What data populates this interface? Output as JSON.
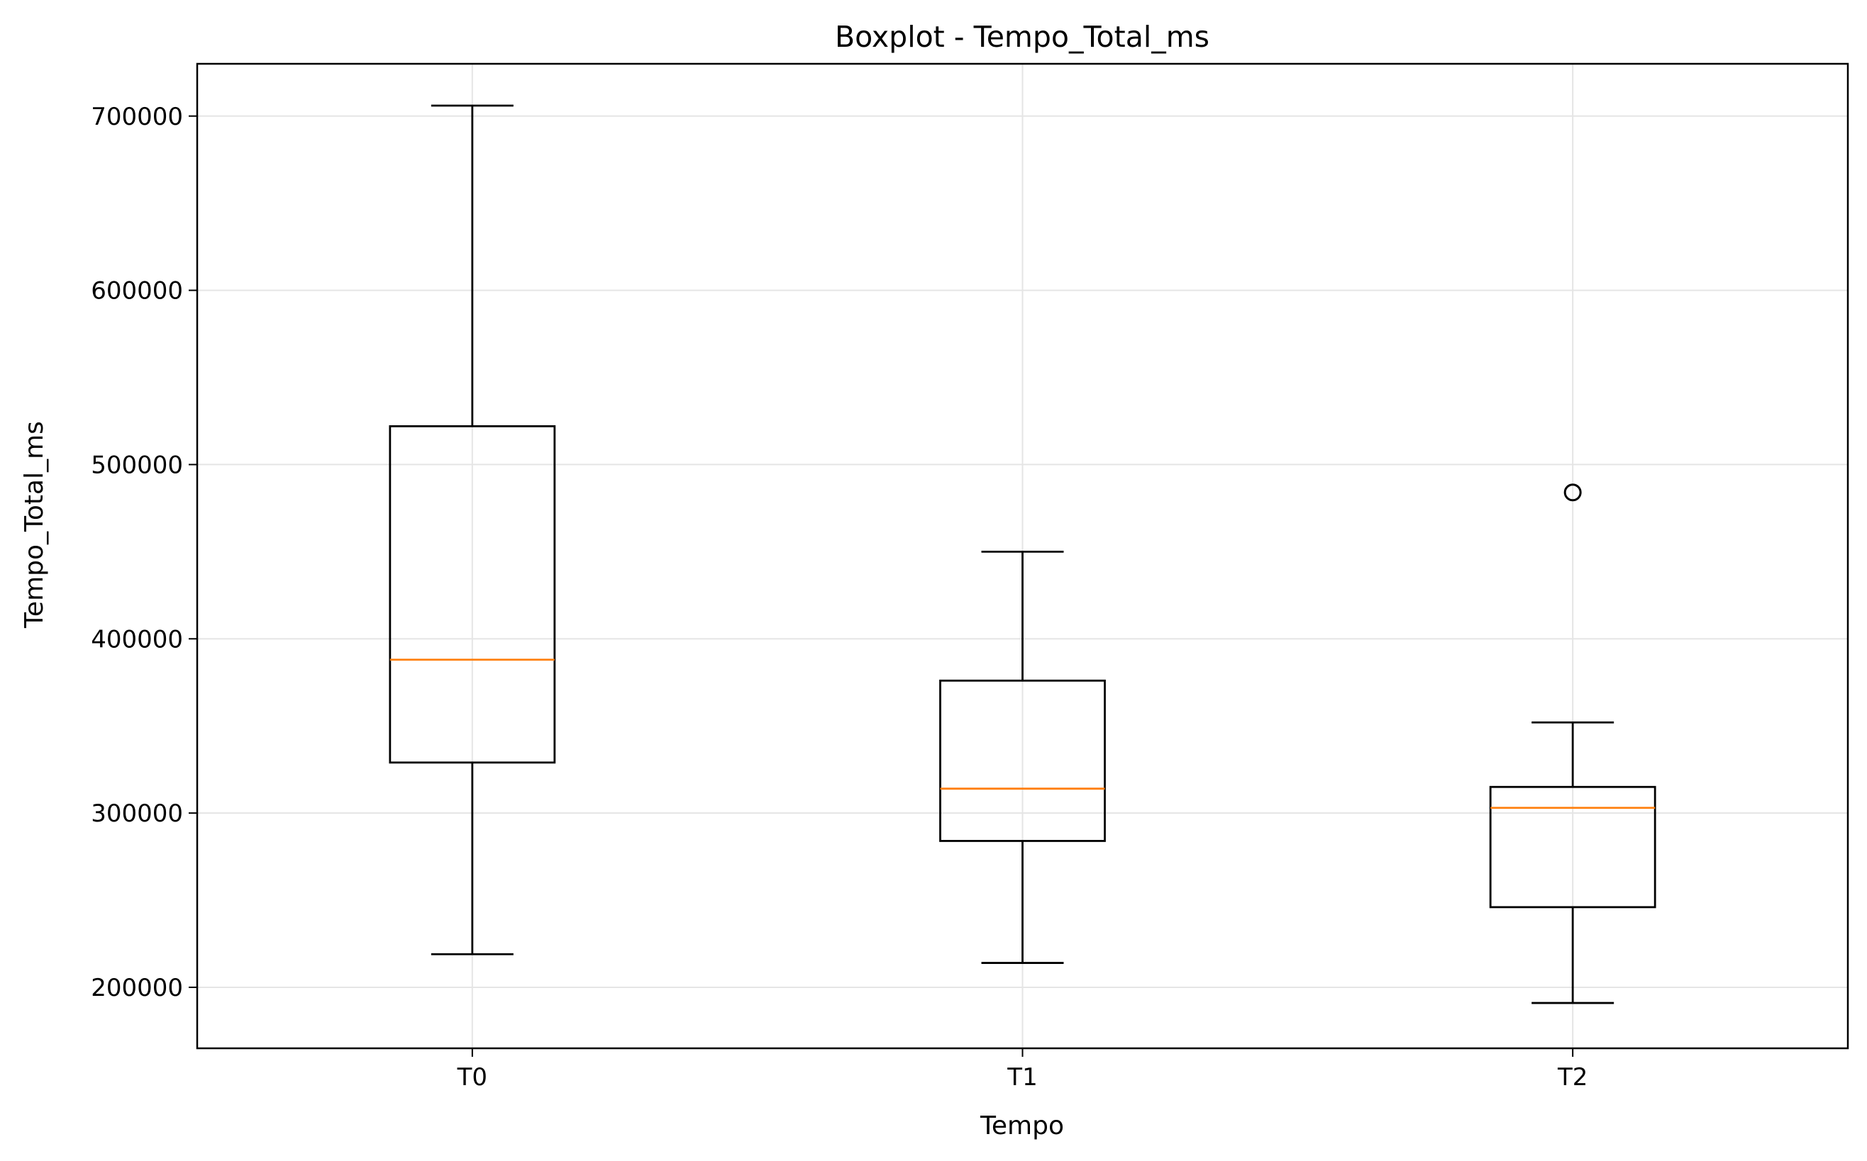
{
  "chart_data": {
    "type": "boxplot",
    "title": "Boxplot - Tempo_Total_ms",
    "xlabel": "Tempo",
    "ylabel": "Tempo_Total_ms",
    "ylim": [
      165000,
      730000
    ],
    "y_ticks": [
      200000,
      300000,
      400000,
      500000,
      600000,
      700000
    ],
    "y_tick_labels": [
      "200000",
      "300000",
      "400000",
      "500000",
      "600000",
      "700000"
    ],
    "grid": true,
    "categories": [
      "T0",
      "T1",
      "T2"
    ],
    "boxes": [
      {
        "label": "T0",
        "whisker_low": 219000,
        "q1": 329000,
        "median": 388000,
        "q3": 522000,
        "whisker_high": 706000,
        "outliers": []
      },
      {
        "label": "T1",
        "whisker_low": 214000,
        "q1": 284000,
        "median": 314000,
        "q3": 376000,
        "whisker_high": 450000,
        "outliers": []
      },
      {
        "label": "T2",
        "whisker_low": 191000,
        "q1": 246000,
        "median": 303000,
        "q3": 315000,
        "whisker_high": 352000,
        "outliers": [
          484000
        ]
      }
    ],
    "colors": {
      "box": "#000000",
      "median": "#ff7f0e",
      "grid": "#e5e5e5"
    }
  }
}
